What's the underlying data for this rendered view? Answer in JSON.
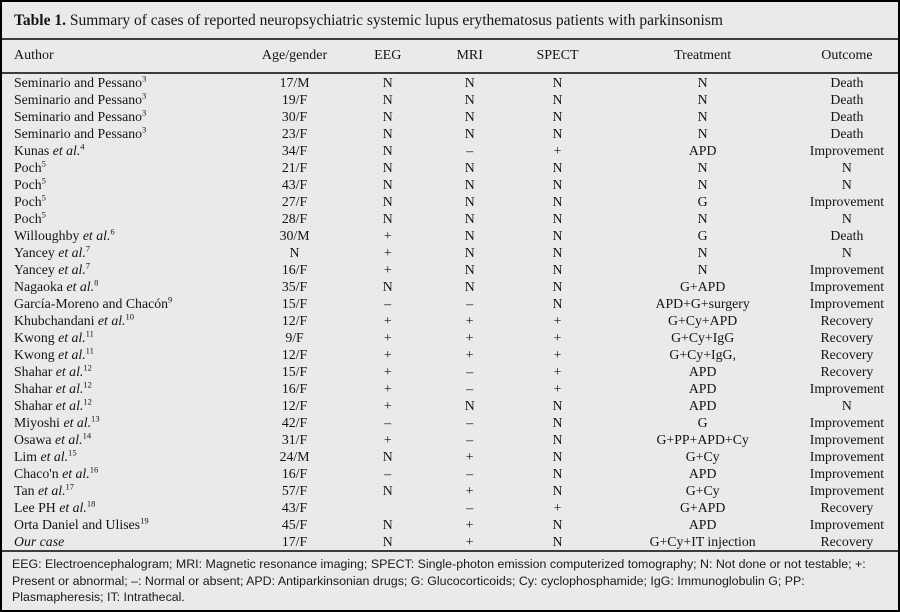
{
  "table": {
    "title_label": "Table 1.",
    "title_text": "Summary of cases of reported neuropsychiatric systemic lupus erythematosus patients with parkinsonism",
    "columns": [
      "Author",
      "Age/gender",
      "EEG",
      "MRI",
      "SPECT",
      "Treatment",
      "Outcome"
    ],
    "rows": [
      {
        "author": "Seminario and Pessano",
        "ref": "3",
        "italic": false,
        "cells": [
          "17/M",
          "N",
          "N",
          "N",
          "N",
          "Death"
        ]
      },
      {
        "author": "Seminario and Pessano",
        "ref": "3",
        "italic": false,
        "cells": [
          "19/F",
          "N",
          "N",
          "N",
          "N",
          "Death"
        ]
      },
      {
        "author": "Seminario and Pessano",
        "ref": "3",
        "italic": false,
        "cells": [
          "30/F",
          "N",
          "N",
          "N",
          "N",
          "Death"
        ]
      },
      {
        "author": "Seminario and Pessano",
        "ref": "3",
        "italic": false,
        "cells": [
          "23/F",
          "N",
          "N",
          "N",
          "N",
          "Death"
        ]
      },
      {
        "author": "Kunas et al.",
        "ref": "4",
        "italic": false,
        "cells": [
          "34/F",
          "N",
          "–",
          "+",
          "APD",
          "Improvement"
        ]
      },
      {
        "author": "Poch",
        "ref": "5",
        "italic": false,
        "cells": [
          "21/F",
          "N",
          "N",
          "N",
          "N",
          "N"
        ]
      },
      {
        "author": "Poch",
        "ref": "5",
        "italic": false,
        "cells": [
          "43/F",
          "N",
          "N",
          "N",
          "N",
          "N"
        ]
      },
      {
        "author": "Poch",
        "ref": "5",
        "italic": false,
        "cells": [
          "27/F",
          "N",
          "N",
          "N",
          "G",
          "Improvement"
        ]
      },
      {
        "author": "Poch",
        "ref": "5",
        "italic": false,
        "cells": [
          "28/F",
          "N",
          "N",
          "N",
          "N",
          "N"
        ]
      },
      {
        "author": "Willoughby et al.",
        "ref": "6",
        "italic": false,
        "cells": [
          "30/M",
          "+",
          "N",
          "N",
          "G",
          "Death"
        ]
      },
      {
        "author": "Yancey et al.",
        "ref": "7",
        "italic": false,
        "cells": [
          "N",
          "+",
          "N",
          "N",
          "N",
          "N"
        ]
      },
      {
        "author": "Yancey et al.",
        "ref": "7",
        "italic": false,
        "cells": [
          "16/F",
          "+",
          "N",
          "N",
          "N",
          "Improvement"
        ]
      },
      {
        "author": "Nagaoka et al.",
        "ref": "8",
        "italic": false,
        "cells": [
          "35/F",
          "N",
          "N",
          "N",
          "G+APD",
          "Improvement"
        ]
      },
      {
        "author": "García-Moreno and Chacón",
        "ref": "9",
        "italic": false,
        "cells": [
          "15/F",
          "–",
          "–",
          "N",
          "APD+G+surgery",
          "Improvement"
        ]
      },
      {
        "author": "Khubchandani et al.",
        "ref": "10",
        "italic": false,
        "cells": [
          "12/F",
          "+",
          "+",
          "+",
          "G+Cy+APD",
          "Recovery"
        ]
      },
      {
        "author": "Kwong et al.",
        "ref": "11",
        "italic": false,
        "cells": [
          "9/F",
          "+",
          "+",
          "+",
          "G+Cy+IgG",
          "Recovery"
        ]
      },
      {
        "author": "Kwong et al.",
        "ref": "11",
        "italic": false,
        "cells": [
          "12/F",
          "+",
          "+",
          "+",
          "G+Cy+IgG,",
          "Recovery"
        ]
      },
      {
        "author": "Shahar et al.",
        "ref": "12",
        "italic": false,
        "cells": [
          "15/F",
          "+",
          "–",
          "+",
          "APD",
          "Recovery"
        ]
      },
      {
        "author": "Shahar et al.",
        "ref": "12",
        "italic": false,
        "cells": [
          "16/F",
          "+",
          "–",
          "+",
          "APD",
          "Improvement"
        ]
      },
      {
        "author": "Shahar et al.",
        "ref": "12",
        "italic": false,
        "cells": [
          "12/F",
          "+",
          "N",
          "N",
          "APD",
          "N"
        ]
      },
      {
        "author": "Miyoshi et al.",
        "ref": "13",
        "italic": false,
        "cells": [
          "42/F",
          "–",
          "–",
          "N",
          "G",
          "Improvement"
        ]
      },
      {
        "author": "Osawa et al.",
        "ref": "14",
        "italic": false,
        "cells": [
          "31/F",
          "+",
          "–",
          "N",
          "G+PP+APD+Cy",
          "Improvement"
        ]
      },
      {
        "author": "Lim et al.",
        "ref": "15",
        "italic": false,
        "cells": [
          "24/M",
          "N",
          "+",
          "N",
          "G+Cy",
          "Improvement"
        ]
      },
      {
        "author": "Chaco'n et al.",
        "ref": "16",
        "italic": false,
        "cells": [
          "16/F",
          "–",
          "–",
          "N",
          "APD",
          "Improvement"
        ]
      },
      {
        "author": "Tan et al.",
        "ref": "17",
        "italic": false,
        "cells": [
          "57/F",
          "N",
          "+",
          "N",
          "G+Cy",
          "Improvement"
        ]
      },
      {
        "author": "Lee PH et al.",
        "ref": "18",
        "italic": false,
        "cells": [
          "43/F",
          "",
          "–",
          "+",
          "G+APD",
          "Recovery"
        ]
      },
      {
        "author": "Orta Daniel and Ulises",
        "ref": "19",
        "italic": false,
        "cells": [
          "45/F",
          "N",
          "+",
          "N",
          "APD",
          "Improvement"
        ]
      },
      {
        "author": "Our case",
        "ref": "",
        "italic": true,
        "cells": [
          "17/F",
          "N",
          "+",
          "N",
          "G+Cy+IT injection",
          "Recovery"
        ]
      }
    ],
    "footnote": "EEG: Electroencephalogram; MRI: Magnetic resonance imaging; SPECT: Single-photon emission computerized tomography; N: Not done or not testable; +: Present or abnormal; –: Normal or absent; APD: Antiparkinsonian drugs; G: Glucocorticoids; Cy: cyclophosphamide; IgG: Immunoglobulin G; PP: Plasmapheresis; IT: Intrathecal."
  }
}
